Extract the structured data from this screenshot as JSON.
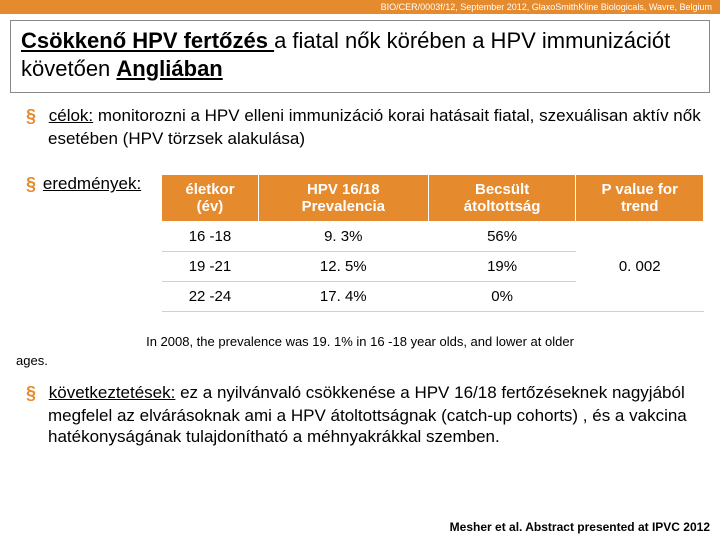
{
  "banner": "BIO/CER/0003f/12, September 2012, GlaxoSmithKline Biologicals, Wavre, Belgium",
  "title": {
    "part1_bold_underline": "Csökkenő HPV fertőzés ",
    "part2": "a fiatal nők körében a HPV immunizációt követően ",
    "part3_bold_underline": "Angliában"
  },
  "goals": {
    "label": "célok:",
    "text": " monitorozni a HPV elleni  immunizáció korai hatásait fiatal, szexuálisan aktív nők esetében (HPV törzsek alakulása)"
  },
  "results": {
    "label": "eredmények:",
    "table": {
      "headers": [
        "életkor (év)",
        "HPV 16/18 Prevalencia",
        "Becsült átoltottság",
        "P value for trend"
      ],
      "rows": [
        [
          "16 -18",
          "9. 3%",
          "56%"
        ],
        [
          "19 -21",
          "12. 5%",
          "19%"
        ],
        [
          "22 -24",
          "17. 4%",
          "0%"
        ]
      ],
      "pvalue": "0. 002",
      "header_bg": "#e68a2e",
      "header_fg": "#ffffff"
    }
  },
  "footnote": "In 2008, the prevalence was 19. 1% in 16 -18 year olds, and lower at older",
  "ages_label": "ages.",
  "conclusion": {
    "label": "következtetések:",
    "text": " ez a nyilvánvaló csökkenése a  HPV 16/18 fertőzéseknek nagyjából megfelel az elvárásoknak ami a HPV átoltottságnak (catch-up cohorts) , és a vakcina hatékonyságának tulajdonítható a méhnyakrákkal szemben."
  },
  "citation": "Mesher et al. Abstract presented at IPVC 2012"
}
